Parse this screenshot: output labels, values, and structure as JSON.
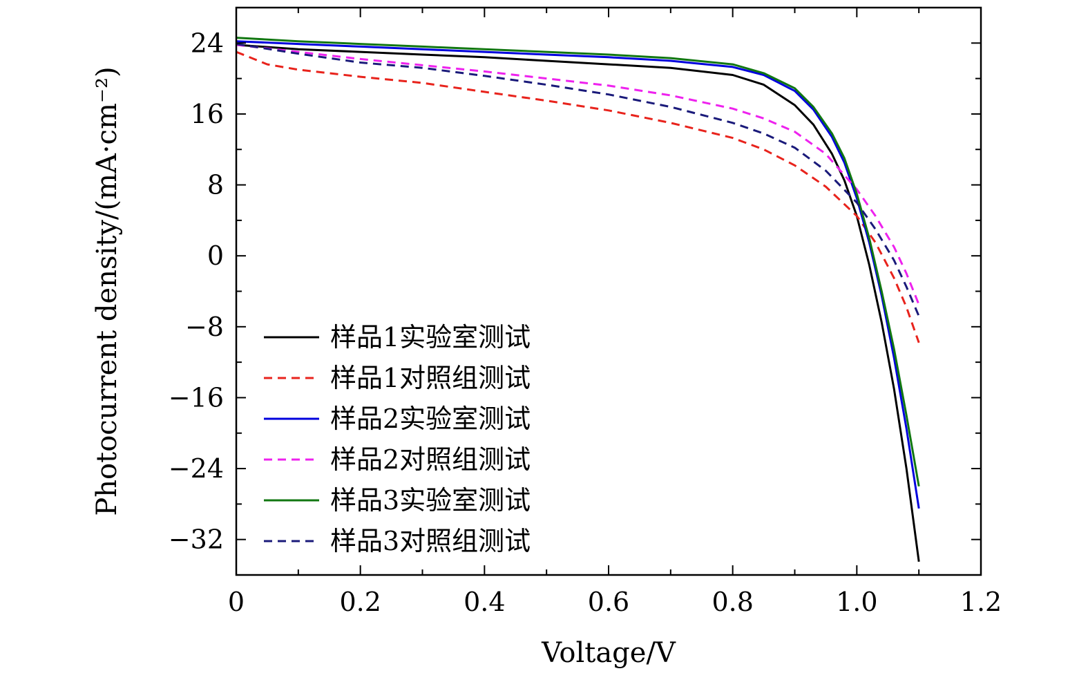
{
  "chart_data": {
    "type": "line",
    "title": "",
    "xlabel": "Voltage/V",
    "ylabel": "Photocurrent density/(mA·cm⁻²)",
    "xlim": [
      0,
      1.2
    ],
    "ylim": [
      -36,
      28
    ],
    "xticks": [
      0,
      0.2,
      0.4,
      0.6,
      0.8,
      1.0,
      1.2
    ],
    "xtick_labels": [
      "0",
      "0.2",
      "0.4",
      "0.6",
      "0.8",
      "1.0",
      "1.2"
    ],
    "yticks": [
      24,
      16,
      8,
      0,
      -8,
      -16,
      -24,
      -32
    ],
    "ytick_labels": [
      "24",
      "16",
      "8",
      "0",
      "−8",
      "−16",
      "−24",
      "−32"
    ],
    "grid": false,
    "legend_position": "bottom-left",
    "series": [
      {
        "name": "样品1实验室测试",
        "color": "#000000",
        "dash": "solid",
        "x": [
          0,
          0.1,
          0.2,
          0.3,
          0.4,
          0.5,
          0.6,
          0.7,
          0.8,
          0.85,
          0.9,
          0.93,
          0.96,
          0.98,
          1.0,
          1.02,
          1.04,
          1.06,
          1.08,
          1.1
        ],
        "y": [
          23.8,
          23.3,
          23.0,
          22.7,
          22.4,
          22.0,
          21.6,
          21.2,
          20.4,
          19.3,
          17.0,
          14.8,
          11.5,
          8.5,
          4.5,
          -1.0,
          -7.5,
          -15.0,
          -24.0,
          -34.5
        ]
      },
      {
        "name": "样品1对照组测试",
        "color": "#e8231c",
        "dash": "dashed",
        "x": [
          0,
          0.05,
          0.1,
          0.2,
          0.3,
          0.4,
          0.5,
          0.6,
          0.7,
          0.8,
          0.85,
          0.9,
          0.95,
          1.0,
          1.03,
          1.06,
          1.08,
          1.1
        ],
        "y": [
          23.0,
          21.6,
          21.0,
          20.2,
          19.5,
          18.5,
          17.5,
          16.4,
          15.0,
          13.3,
          12.0,
          10.2,
          7.8,
          4.5,
          1.5,
          -2.5,
          -5.8,
          -9.8
        ]
      },
      {
        "name": "样品2实验室测试",
        "color": "#0000dd",
        "dash": "solid",
        "x": [
          0,
          0.1,
          0.2,
          0.3,
          0.4,
          0.5,
          0.6,
          0.7,
          0.8,
          0.85,
          0.9,
          0.93,
          0.96,
          0.98,
          1.0,
          1.02,
          1.04,
          1.06,
          1.08,
          1.1
        ],
        "y": [
          24.2,
          23.9,
          23.6,
          23.3,
          23.0,
          22.7,
          22.4,
          22.0,
          21.3,
          20.4,
          18.6,
          16.5,
          13.4,
          10.5,
          6.5,
          1.5,
          -4.5,
          -11.5,
          -19.5,
          -28.5
        ]
      },
      {
        "name": "样品2对照组测试",
        "color": "#ee22ee",
        "dash": "dashed",
        "x": [
          0,
          0.1,
          0.2,
          0.3,
          0.4,
          0.5,
          0.6,
          0.7,
          0.8,
          0.85,
          0.9,
          0.95,
          1.0,
          1.03,
          1.06,
          1.08,
          1.1
        ],
        "y": [
          23.8,
          23.0,
          22.2,
          21.5,
          20.8,
          20.0,
          19.2,
          18.1,
          16.6,
          15.5,
          14.0,
          11.5,
          7.5,
          4.5,
          1.0,
          -2.0,
          -5.5
        ]
      },
      {
        "name": "样品3实验室测试",
        "color": "#117711",
        "dash": "solid",
        "x": [
          0,
          0.1,
          0.2,
          0.3,
          0.4,
          0.5,
          0.6,
          0.7,
          0.8,
          0.85,
          0.9,
          0.93,
          0.96,
          0.98,
          1.0,
          1.02,
          1.04,
          1.06,
          1.08,
          1.1
        ],
        "y": [
          24.6,
          24.2,
          23.9,
          23.6,
          23.3,
          23.0,
          22.7,
          22.3,
          21.6,
          20.6,
          18.9,
          16.8,
          13.8,
          11.0,
          7.0,
          2.0,
          -4.0,
          -10.5,
          -18.0,
          -26.0
        ]
      },
      {
        "name": "样品3对照组测试",
        "color": "#1a1a7a",
        "dash": "dashed",
        "x": [
          0,
          0.1,
          0.2,
          0.3,
          0.4,
          0.5,
          0.6,
          0.7,
          0.8,
          0.85,
          0.9,
          0.95,
          1.0,
          1.03,
          1.06,
          1.08,
          1.1
        ],
        "y": [
          23.9,
          22.8,
          21.8,
          21.2,
          20.3,
          19.3,
          18.2,
          16.8,
          15.0,
          13.8,
          12.2,
          9.6,
          6.0,
          3.0,
          -0.5,
          -3.5,
          -6.8
        ]
      }
    ]
  }
}
